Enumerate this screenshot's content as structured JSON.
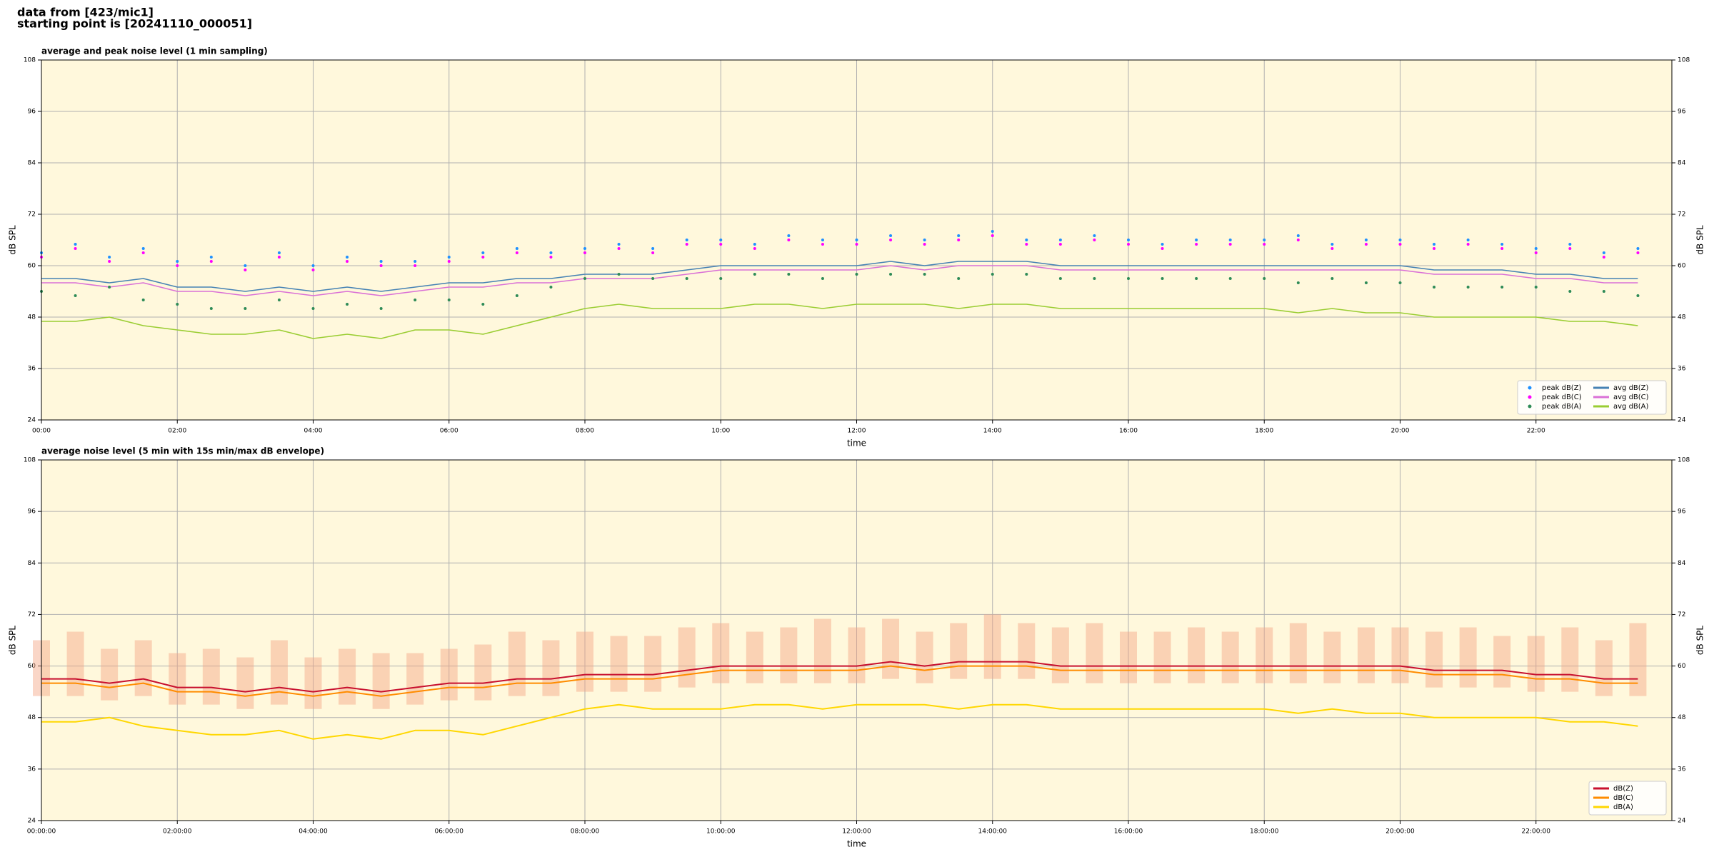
{
  "header": {
    "line1": "data from [423/mic1]",
    "line2": "starting point is [20241110_000051]"
  },
  "chart_data": [
    {
      "type": "line",
      "title": "average and peak noise level (1 min sampling)",
      "xlabel": "time",
      "ylabel": "dB SPL",
      "background": "#fff8dc",
      "grid": true,
      "legend": "lower right",
      "legend_ncol": 2,
      "xlim": [
        0,
        24
      ],
      "ylim": [
        24,
        108
      ],
      "xticks": [
        {
          "value": 0,
          "label": "00:00"
        },
        {
          "value": 2,
          "label": "02:00"
        },
        {
          "value": 4,
          "label": "04:00"
        },
        {
          "value": 6,
          "label": "06:00"
        },
        {
          "value": 8,
          "label": "08:00"
        },
        {
          "value": 10,
          "label": "10:00"
        },
        {
          "value": 12,
          "label": "12:00"
        },
        {
          "value": 14,
          "label": "14:00"
        },
        {
          "value": 16,
          "label": "16:00"
        },
        {
          "value": 18,
          "label": "18:00"
        },
        {
          "value": 20,
          "label": "20:00"
        },
        {
          "value": 22,
          "label": "22:00"
        }
      ],
      "yticks": [
        24,
        36,
        48,
        60,
        72,
        84,
        96,
        108
      ],
      "x": [
        0,
        0.5,
        1,
        1.5,
        2,
        2.5,
        3,
        3.5,
        4,
        4.5,
        5,
        5.5,
        6,
        6.5,
        7,
        7.5,
        8,
        8.5,
        9,
        9.5,
        10,
        10.5,
        11,
        11.5,
        12,
        12.5,
        13,
        13.5,
        14,
        14.5,
        15,
        15.5,
        16,
        16.5,
        17,
        17.5,
        18,
        18.5,
        19,
        19.5,
        20,
        20.5,
        21,
        21.5,
        22,
        22.5,
        23,
        23.5
      ],
      "series": [
        {
          "name": "peak dB(Z)",
          "mode": "markers",
          "color": "#1e90ff",
          "values": [
            63,
            65,
            62,
            64,
            61,
            62,
            60,
            63,
            60,
            62,
            61,
            61,
            62,
            63,
            64,
            63,
            64,
            65,
            64,
            66,
            66,
            65,
            67,
            66,
            66,
            67,
            66,
            67,
            68,
            66,
            66,
            67,
            66,
            65,
            66,
            66,
            66,
            67,
            65,
            66,
            66,
            65,
            66,
            65,
            64,
            65,
            63,
            64
          ]
        },
        {
          "name": "peak dB(C)",
          "mode": "markers",
          "color": "#ff00ff",
          "values": [
            62,
            64,
            61,
            63,
            60,
            61,
            59,
            62,
            59,
            61,
            60,
            60,
            61,
            62,
            63,
            62,
            63,
            64,
            63,
            65,
            65,
            64,
            66,
            65,
            65,
            66,
            65,
            66,
            67,
            65,
            65,
            66,
            65,
            64,
            65,
            65,
            65,
            66,
            64,
            65,
            65,
            64,
            65,
            64,
            63,
            64,
            62,
            63
          ]
        },
        {
          "name": "peak dB(A)",
          "mode": "markers",
          "color": "#2e8b57",
          "values": [
            54,
            53,
            55,
            52,
            51,
            50,
            50,
            52,
            50,
            51,
            50,
            52,
            52,
            51,
            53,
            55,
            57,
            58,
            57,
            57,
            57,
            58,
            58,
            57,
            58,
            58,
            58,
            57,
            58,
            58,
            57,
            57,
            57,
            57,
            57,
            57,
            57,
            56,
            57,
            56,
            56,
            55,
            55,
            55,
            55,
            54,
            54,
            53
          ]
        },
        {
          "name": "avg dB(Z)",
          "mode": "line",
          "linewidth": 1.6,
          "color": "#4682b4",
          "values": [
            57,
            57,
            56,
            57,
            55,
            55,
            54,
            55,
            54,
            55,
            54,
            55,
            56,
            56,
            57,
            57,
            58,
            58,
            58,
            59,
            60,
            60,
            60,
            60,
            60,
            61,
            60,
            61,
            61,
            61,
            60,
            60,
            60,
            60,
            60,
            60,
            60,
            60,
            60,
            60,
            60,
            59,
            59,
            59,
            58,
            58,
            57,
            57
          ]
        },
        {
          "name": "avg dB(C)",
          "mode": "line",
          "linewidth": 1.6,
          "color": "#da70d6",
          "values": [
            56,
            56,
            55,
            56,
            54,
            54,
            53,
            54,
            53,
            54,
            53,
            54,
            55,
            55,
            56,
            56,
            57,
            57,
            57,
            58,
            59,
            59,
            59,
            59,
            59,
            60,
            59,
            60,
            60,
            60,
            59,
            59,
            59,
            59,
            59,
            59,
            59,
            59,
            59,
            59,
            59,
            58,
            58,
            58,
            57,
            57,
            56,
            56
          ]
        },
        {
          "name": "avg dB(A)",
          "mode": "line",
          "linewidth": 1.6,
          "color": "#9acd32",
          "values": [
            47,
            47,
            48,
            46,
            45,
            44,
            44,
            45,
            43,
            44,
            43,
            45,
            45,
            44,
            46,
            48,
            50,
            51,
            50,
            50,
            50,
            51,
            51,
            50,
            51,
            51,
            51,
            50,
            51,
            51,
            50,
            50,
            50,
            50,
            50,
            50,
            50,
            49,
            50,
            49,
            49,
            48,
            48,
            48,
            48,
            47,
            47,
            46
          ]
        }
      ]
    },
    {
      "type": "line",
      "title": "average noise level (5 min with 15s min/max dB envelope)",
      "xlabel": "time",
      "ylabel": "dB SPL",
      "background": "#fff8dc",
      "grid": true,
      "legend": "lower right",
      "legend_ncol": 1,
      "xlim": [
        0,
        24
      ],
      "ylim": [
        24,
        108
      ],
      "xticks": [
        {
          "value": 0,
          "label": "00:00:00"
        },
        {
          "value": 2,
          "label": "02:00:00"
        },
        {
          "value": 4,
          "label": "04:00:00"
        },
        {
          "value": 6,
          "label": "06:00:00"
        },
        {
          "value": 8,
          "label": "08:00:00"
        },
        {
          "value": 10,
          "label": "10:00:00"
        },
        {
          "value": 12,
          "label": "12:00:00"
        },
        {
          "value": 14,
          "label": "14:00:00"
        },
        {
          "value": 16,
          "label": "16:00:00"
        },
        {
          "value": 18,
          "label": "18:00:00"
        },
        {
          "value": 20,
          "label": "20:00:00"
        },
        {
          "value": 22,
          "label": "22:00:00"
        }
      ],
      "yticks": [
        24,
        36,
        48,
        60,
        72,
        84,
        96,
        108
      ],
      "x": [
        0,
        0.5,
        1,
        1.5,
        2,
        2.5,
        3,
        3.5,
        4,
        4.5,
        5,
        5.5,
        6,
        6.5,
        7,
        7.5,
        8,
        8.5,
        9,
        9.5,
        10,
        10.5,
        11,
        11.5,
        12,
        12.5,
        13,
        13.5,
        14,
        14.5,
        15,
        15.5,
        16,
        16.5,
        17,
        17.5,
        18,
        18.5,
        19,
        19.5,
        20,
        20.5,
        21,
        21.5,
        22,
        22.5,
        23,
        23.5
      ],
      "envelope": {
        "color": "#f4a582",
        "lower": [
          53,
          53,
          52,
          53,
          51,
          51,
          50,
          51,
          50,
          51,
          50,
          51,
          52,
          52,
          53,
          53,
          54,
          54,
          54,
          55,
          56,
          56,
          56,
          56,
          56,
          57,
          56,
          57,
          57,
          57,
          56,
          56,
          56,
          56,
          56,
          56,
          56,
          56,
          56,
          56,
          56,
          55,
          55,
          55,
          54,
          54,
          53,
          53
        ],
        "upper": [
          66,
          68,
          64,
          66,
          63,
          64,
          62,
          66,
          62,
          64,
          63,
          63,
          64,
          65,
          68,
          66,
          68,
          67,
          67,
          69,
          70,
          68,
          69,
          71,
          69,
          71,
          68,
          70,
          72,
          70,
          69,
          70,
          68,
          68,
          69,
          68,
          69,
          70,
          68,
          69,
          69,
          68,
          69,
          67,
          67,
          69,
          66,
          70
        ]
      },
      "series": [
        {
          "name": "dB(Z)",
          "mode": "line",
          "linewidth": 2,
          "color": "#c8102e",
          "values": [
            57,
            57,
            56,
            57,
            55,
            55,
            54,
            55,
            54,
            55,
            54,
            55,
            56,
            56,
            57,
            57,
            58,
            58,
            58,
            59,
            60,
            60,
            60,
            60,
            60,
            61,
            60,
            61,
            61,
            61,
            60,
            60,
            60,
            60,
            60,
            60,
            60,
            60,
            60,
            60,
            60,
            59,
            59,
            59,
            58,
            58,
            57,
            57
          ]
        },
        {
          "name": "dB(C)",
          "mode": "line",
          "linewidth": 2,
          "color": "#ff8c00",
          "values": [
            56,
            56,
            55,
            56,
            54,
            54,
            53,
            54,
            53,
            54,
            53,
            54,
            55,
            55,
            56,
            56,
            57,
            57,
            57,
            58,
            59,
            59,
            59,
            59,
            59,
            60,
            59,
            60,
            60,
            60,
            59,
            59,
            59,
            59,
            59,
            59,
            59,
            59,
            59,
            59,
            59,
            58,
            58,
            58,
            57,
            57,
            56,
            56
          ]
        },
        {
          "name": "dB(A)",
          "mode": "line",
          "linewidth": 2,
          "color": "#ffd700",
          "values": [
            47,
            47,
            48,
            46,
            45,
            44,
            44,
            45,
            43,
            44,
            43,
            45,
            45,
            44,
            46,
            48,
            50,
            51,
            50,
            50,
            50,
            51,
            51,
            50,
            51,
            51,
            51,
            50,
            51,
            51,
            50,
            50,
            50,
            50,
            50,
            50,
            50,
            49,
            50,
            49,
            49,
            48,
            48,
            48,
            48,
            47,
            47,
            46
          ]
        }
      ]
    }
  ]
}
